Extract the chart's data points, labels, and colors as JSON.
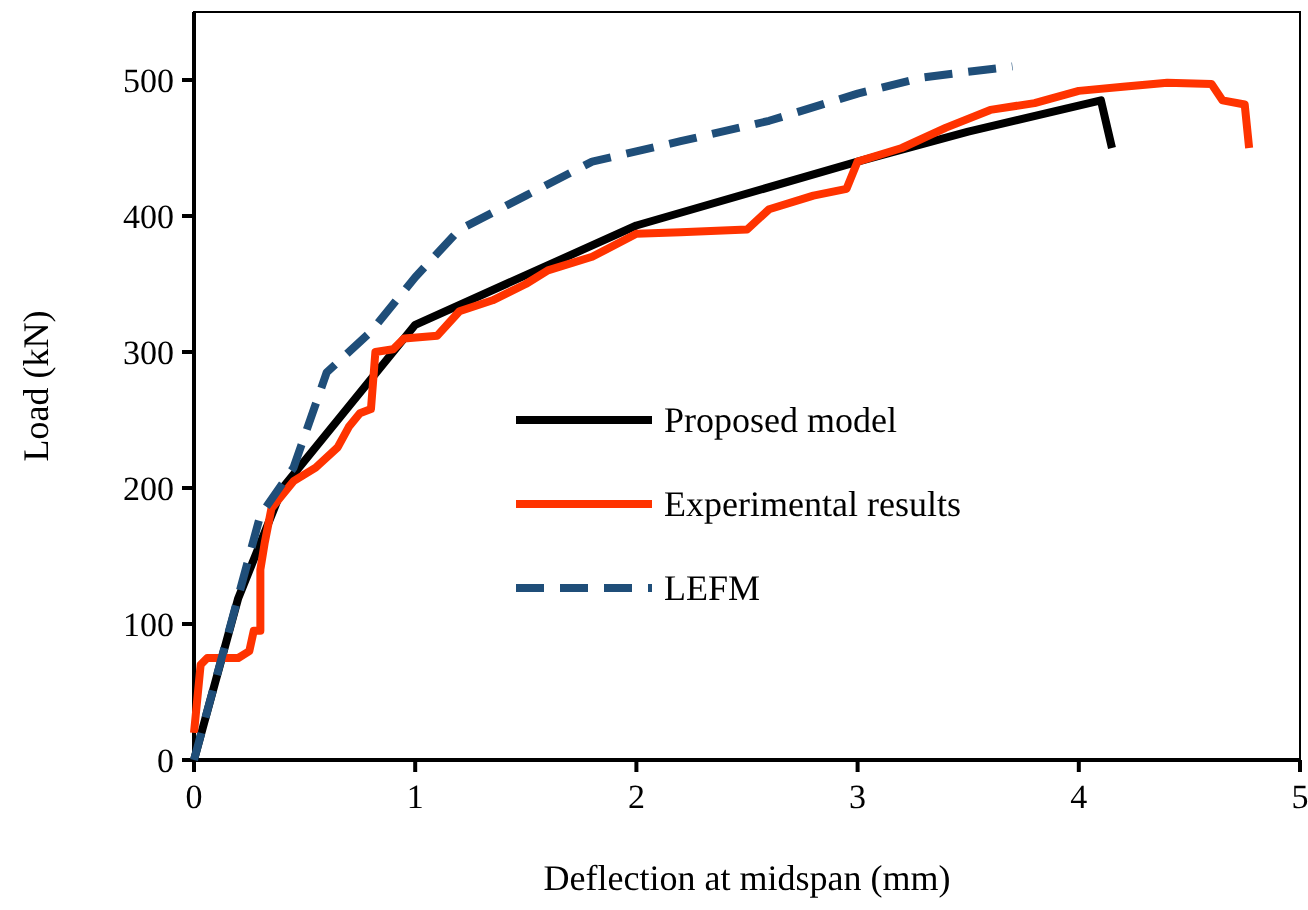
{
  "chart_data": {
    "type": "line",
    "xlabel": "Deflection at midspan (mm)",
    "ylabel": "Load (kN)",
    "xlim": [
      0,
      5
    ],
    "xticks": [
      0,
      1,
      2,
      3,
      4,
      5
    ],
    "ylim": [
      0,
      550
    ],
    "yticks": [
      0,
      100,
      200,
      300,
      400,
      500
    ],
    "grid": false,
    "legend": "right",
    "series": [
      {
        "name": "Proposed model",
        "color": "#000000",
        "line_style": "solid",
        "x": [
          0,
          0.2,
          0.4,
          1.0,
          2.0,
          3.0,
          3.5,
          4.1,
          4.15
        ],
        "values": [
          0,
          119,
          200,
          320,
          393,
          440,
          462,
          485,
          450
        ]
      },
      {
        "name": "Experimental results",
        "color": "#ff3300",
        "line_style": "solid",
        "x": [
          0,
          0.03,
          0.06,
          0.2,
          0.25,
          0.27,
          0.3,
          0.3,
          0.32,
          0.35,
          0.4,
          0.45,
          0.55,
          0.65,
          0.7,
          0.75,
          0.8,
          0.82,
          0.9,
          0.95,
          1.1,
          1.2,
          1.35,
          1.5,
          1.6,
          1.8,
          2.0,
          2.2,
          2.5,
          2.6,
          2.8,
          2.95,
          3.0,
          3.2,
          3.4,
          3.6,
          3.8,
          4.0,
          4.2,
          4.4,
          4.6,
          4.65,
          4.75,
          4.77
        ],
        "values": [
          20,
          70,
          75,
          75,
          80,
          95,
          95,
          140,
          160,
          185,
          195,
          205,
          215,
          230,
          245,
          255,
          258,
          300,
          302,
          310,
          312,
          330,
          338,
          350,
          360,
          370,
          387,
          388,
          390,
          405,
          415,
          420,
          440,
          450,
          465,
          478,
          483,
          492,
          495,
          498,
          497,
          485,
          482,
          450
        ]
      },
      {
        "name": "LEFM",
        "color": "#1f4e79",
        "line_style": "dashed",
        "x": [
          0,
          0.3,
          0.45,
          0.6,
          0.8,
          1.0,
          1.2,
          1.5,
          1.8,
          2.2,
          2.6,
          3.0,
          3.3,
          3.7
        ],
        "values": [
          0,
          180,
          215,
          285,
          315,
          355,
          390,
          415,
          440,
          455,
          470,
          490,
          502,
          510
        ]
      }
    ]
  }
}
